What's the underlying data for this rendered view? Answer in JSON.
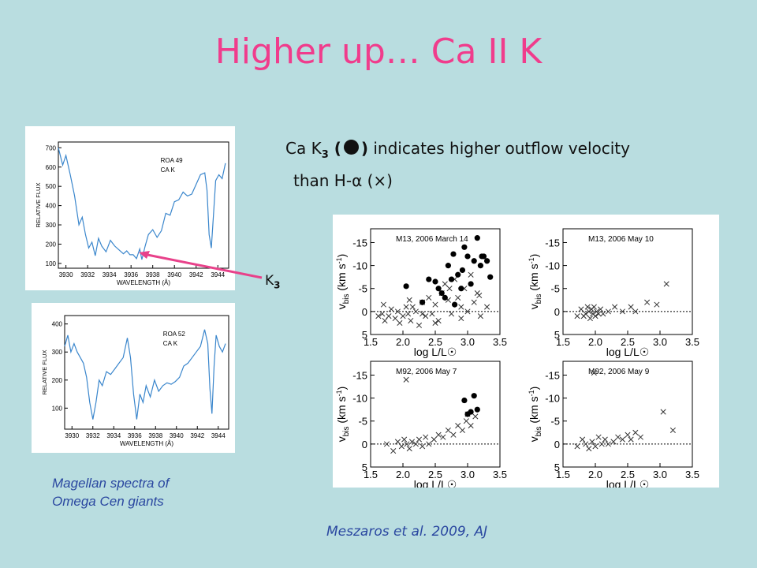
{
  "slide": {
    "title": "Higher up… Ca II K",
    "desc_line1_pre": "Ca K",
    "desc_sub": "3",
    "desc_paren_open": " (",
    "desc_paren_close": ")",
    "desc_line1_post": " indicates higher outflow velocity",
    "desc_line2": "than H-α (×)",
    "k3_label": "K",
    "k3_sub": "3",
    "caption_left_1": "Magellan spectra of",
    "caption_left_2": "Omega Cen giants",
    "caption_right": "Meszaros et al. 2009, AJ",
    "arrow_color": "#e8418a",
    "title_color": "#f03c8c",
    "caption_color": "#2a47a0"
  },
  "chart_data": [
    {
      "type": "line",
      "panel": "roa49",
      "label1": "ROA 49",
      "label2": "CA K",
      "xlabel": "WAVELENGTH (Å)",
      "ylabel": "RELATIVE FLUX",
      "xlim": [
        3929.3,
        3945.0
      ],
      "ylim": [
        75,
        730
      ],
      "xticks": [
        "3930",
        "3932",
        "3934",
        "3936",
        "3938",
        "3940",
        "3942",
        "3944"
      ],
      "yticks": [
        "100",
        "200",
        "300",
        "400",
        "500",
        "600",
        "700"
      ],
      "x": [
        3929.3,
        3929.7,
        3930.0,
        3930.4,
        3930.8,
        3931.2,
        3931.5,
        3931.8,
        3932.1,
        3932.4,
        3932.7,
        3933.0,
        3933.3,
        3933.7,
        3934.1,
        3934.5,
        3934.9,
        3935.3,
        3935.6,
        3935.9,
        3936.2,
        3936.5,
        3936.8,
        3937.0,
        3937.3,
        3937.6,
        3938.0,
        3938.4,
        3938.8,
        3939.2,
        3939.6,
        3940.0,
        3940.4,
        3940.8,
        3941.2,
        3941.6,
        3942.0,
        3942.4,
        3942.8,
        3943.0,
        3943.2,
        3943.4,
        3943.6,
        3943.8,
        3944.1,
        3944.4,
        3944.7
      ],
      "values": [
        700,
        610,
        660,
        560,
        450,
        300,
        340,
        250,
        180,
        210,
        140,
        230,
        190,
        160,
        220,
        190,
        170,
        150,
        165,
        145,
        145,
        125,
        175,
        120,
        190,
        250,
        275,
        235,
        270,
        360,
        350,
        420,
        430,
        470,
        450,
        460,
        510,
        560,
        570,
        480,
        250,
        180,
        350,
        530,
        560,
        540,
        620
      ]
    },
    {
      "type": "line",
      "panel": "roa52",
      "label1": "ROA 52",
      "label2": "CA K",
      "xlabel": "WAVELENGTH (Å)",
      "ylabel": "RELATIVE FLUX",
      "xlim": [
        3929.3,
        3945.0
      ],
      "ylim": [
        25,
        430
      ],
      "xticks": [
        "3930",
        "3932",
        "3934",
        "3936",
        "3938",
        "3940",
        "3942",
        "3944"
      ],
      "yticks": [
        "100",
        "200",
        "300",
        "400"
      ],
      "x": [
        3929.3,
        3929.6,
        3929.9,
        3930.2,
        3930.5,
        3930.8,
        3931.1,
        3931.4,
        3931.7,
        3932.0,
        3932.3,
        3932.6,
        3932.9,
        3933.3,
        3933.7,
        3934.1,
        3934.5,
        3934.9,
        3935.3,
        3935.6,
        3935.9,
        3936.2,
        3936.5,
        3936.8,
        3937.1,
        3937.5,
        3937.9,
        3938.3,
        3938.7,
        3939.1,
        3939.5,
        3939.9,
        3940.3,
        3940.7,
        3941.1,
        3941.5,
        3941.9,
        3942.3,
        3942.7,
        3943.0,
        3943.2,
        3943.4,
        3943.6,
        3943.8,
        3944.1,
        3944.4,
        3944.7
      ],
      "values": [
        320,
        360,
        300,
        330,
        300,
        280,
        260,
        210,
        120,
        60,
        120,
        200,
        180,
        230,
        220,
        240,
        260,
        280,
        350,
        280,
        150,
        60,
        150,
        120,
        180,
        140,
        200,
        160,
        180,
        190,
        185,
        195,
        210,
        250,
        260,
        280,
        300,
        320,
        380,
        330,
        170,
        80,
        250,
        360,
        320,
        300,
        330
      ]
    },
    {
      "type": "scatter",
      "panel": "m13-march14",
      "title": "M13, 2006 March 14",
      "xlabel": "log L/L☉",
      "ylabel": "v_bis (km s⁻¹)",
      "ylabel_main": "v",
      "ylabel_sub": "bis",
      "ylabel_unit": " (km s",
      "ylabel_exp": "-1",
      "ylabel_close": ")",
      "xlim": [
        1.5,
        3.5
      ],
      "ylim": [
        5,
        -18
      ],
      "xticks": [
        "1.5",
        "2.0",
        "2.5",
        "3.0",
        "3.5"
      ],
      "yticks": [
        "-15",
        "-10",
        "-5",
        "0",
        "5"
      ],
      "x_series": [
        1.62,
        1.68,
        1.72,
        1.78,
        1.82,
        1.88,
        1.92,
        1.95,
        2.0,
        2.05,
        2.08,
        2.12,
        2.15,
        2.2,
        2.25,
        2.3,
        2.35,
        2.4,
        2.45,
        2.5,
        2.55,
        2.6,
        2.65,
        2.7,
        2.75,
        2.8,
        2.85,
        2.9,
        2.95,
        3.0,
        3.05,
        3.1,
        3.15,
        3.2,
        3.3,
        1.7,
        2.1,
        2.3,
        2.5,
        2.72,
        2.9,
        3.18
      ],
      "y_series": [
        1.0,
        0.5,
        2.0,
        1.0,
        -0.5,
        1.5,
        0.0,
        2.5,
        1.0,
        -1.0,
        0.5,
        2.0,
        -1.0,
        0.0,
        3.0,
        -2.0,
        1.0,
        -3.0,
        0.5,
        -1.5,
        2.0,
        -4.0,
        -6.0,
        -2.5,
        0.5,
        -7.0,
        -3.0,
        -1.0,
        -5.0,
        0.0,
        -8.0,
        -2.0,
        -4.0,
        1.0,
        -1.0,
        -1.5,
        -2.5,
        0.5,
        2.5,
        -5.0,
        1.5,
        -3.5
      ],
      "x_filled": [
        2.05,
        2.3,
        2.4,
        2.55,
        2.6,
        2.65,
        2.7,
        2.75,
        2.8,
        2.85,
        2.9,
        2.95,
        3.0,
        3.05,
        3.1,
        3.15,
        3.2,
        3.25,
        3.3,
        3.35,
        2.5,
        2.78,
        2.92,
        3.22
      ],
      "y_filled": [
        -5.5,
        -2.0,
        -7.0,
        -5.0,
        -4.0,
        -3.0,
        -10.0,
        -7.0,
        -1.5,
        -8.0,
        -5.0,
        -14.0,
        -12.0,
        -6.0,
        -11.0,
        -16.0,
        -10.0,
        -12.0,
        -11.0,
        -7.5,
        -6.5,
        -12.5,
        -9.0,
        -12.0
      ]
    },
    {
      "type": "scatter",
      "panel": "m13-may10",
      "title": "M13, 2006 May 10",
      "xlabel": "log L/L☉",
      "ylabel": "v_bis (km s⁻¹)",
      "ylabel_main": "v",
      "ylabel_sub": "bis",
      "ylabel_unit": " (km s",
      "ylabel_exp": "-1",
      "ylabel_close": ")",
      "xlim": [
        1.5,
        3.5
      ],
      "ylim": [
        5,
        -18
      ],
      "xticks": [
        "1.5",
        "2.0",
        "2.5",
        "3.0",
        "3.5"
      ],
      "yticks": [
        "-15",
        "-10",
        "-5",
        "0",
        "5"
      ],
      "x_series": [
        1.72,
        1.78,
        1.82,
        1.85,
        1.88,
        1.9,
        1.92,
        1.94,
        1.96,
        1.98,
        2.0,
        2.02,
        2.05,
        2.08,
        2.12,
        2.2,
        2.3,
        2.42,
        2.55,
        2.62,
        2.8,
        2.95,
        3.1
      ],
      "y_series": [
        1.0,
        -0.5,
        1.0,
        0.5,
        -1.0,
        0.0,
        1.5,
        -0.5,
        0.5,
        -1.0,
        1.0,
        0.0,
        0.5,
        -0.5,
        0.5,
        0.0,
        -1.0,
        0.0,
        -1.0,
        0.0,
        -2.0,
        -1.5,
        -6.0
      ],
      "x_filled": [],
      "y_filled": []
    },
    {
      "type": "scatter",
      "panel": "m92-may7",
      "title": "M92, 2006 May 7",
      "xlabel": "log L/L☉",
      "ylabel": "v_bis (km s⁻¹)",
      "ylabel_main": "v",
      "ylabel_sub": "bis",
      "ylabel_unit": " (km s",
      "ylabel_exp": "-1",
      "ylabel_close": ")",
      "xlim": [
        1.5,
        3.5
      ],
      "ylim": [
        5,
        -18
      ],
      "xticks": [
        "1.5",
        "2.0",
        "2.5",
        "3.0",
        "3.5"
      ],
      "yticks": [
        "-15",
        "-10",
        "-5",
        "0",
        "5"
      ],
      "x_series": [
        1.75,
        1.85,
        1.92,
        1.98,
        2.02,
        2.06,
        2.1,
        2.14,
        2.2,
        2.25,
        2.3,
        2.35,
        2.4,
        2.48,
        2.55,
        2.62,
        2.7,
        2.78,
        2.85,
        2.92,
        2.98,
        3.05,
        3.12,
        2.05,
        3.0
      ],
      "y_series": [
        0.0,
        1.5,
        -0.5,
        0.5,
        -1.0,
        0.0,
        1.0,
        -0.5,
        0.0,
        -1.0,
        0.5,
        -1.5,
        0.0,
        -1.0,
        -2.0,
        -1.5,
        -3.0,
        -2.0,
        -4.0,
        -3.0,
        -5.0,
        -4.0,
        -6.0,
        -14.0,
        -6.5
      ],
      "x_filled": [
        2.95,
        3.0,
        3.05,
        3.1,
        3.15
      ],
      "y_filled": [
        -9.5,
        -6.5,
        -7.0,
        -10.5,
        -7.5
      ]
    },
    {
      "type": "scatter",
      "panel": "m92-may9",
      "title": "M92, 2006 May 9",
      "xlabel": "log L/L☉",
      "ylabel": "v_bis (km s⁻¹)",
      "ylabel_main": "v",
      "ylabel_sub": "bis",
      "ylabel_unit": " (km s",
      "ylabel_exp": "-1",
      "ylabel_close": ")",
      "xlim": [
        1.5,
        3.5
      ],
      "ylim": [
        5,
        -18
      ],
      "xticks": [
        "1.5",
        "2.0",
        "2.5",
        "3.0",
        "3.5"
      ],
      "yticks": [
        "-15",
        "-10",
        "-5",
        "0",
        "5"
      ],
      "x_series": [
        1.72,
        1.8,
        1.85,
        1.9,
        1.95,
        2.0,
        2.05,
        2.1,
        2.15,
        2.2,
        2.28,
        2.35,
        2.42,
        2.5,
        2.55,
        2.62,
        2.7,
        3.05,
        3.2,
        1.98
      ],
      "y_series": [
        0.5,
        -1.0,
        0.0,
        1.0,
        -0.5,
        0.5,
        -1.5,
        0.0,
        -1.0,
        0.0,
        -0.5,
        -1.5,
        -1.0,
        -2.0,
        -1.0,
        -2.5,
        -1.5,
        -7.0,
        -3.0,
        -15.5
      ],
      "x_filled": [],
      "y_filled": []
    }
  ]
}
